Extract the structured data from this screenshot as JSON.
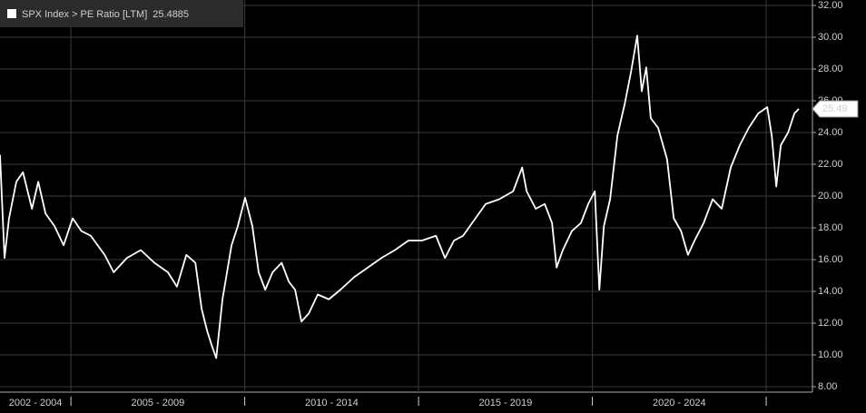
{
  "chart_data": {
    "type": "line",
    "legend": "SPX Index > PE Ratio [LTM]",
    "last_value": {
      "value": 25.4885,
      "label": "25.49"
    },
    "series": [
      {
        "name": "SPX Index > PE Ratio [LTM]",
        "color": "#ffffff",
        "x": [
          2002.96,
          2003.09,
          2003.22,
          2003.43,
          2003.62,
          2003.88,
          2004.06,
          2004.27,
          2004.53,
          2004.79,
          2005.05,
          2005.3,
          2005.57,
          2005.97,
          2006.23,
          2006.61,
          2007.01,
          2007.4,
          2007.79,
          2008.05,
          2008.32,
          2008.58,
          2008.76,
          2008.92,
          2009.05,
          2009.18,
          2009.36,
          2009.62,
          2009.8,
          2010.01,
          2010.22,
          2010.4,
          2010.59,
          2010.8,
          2011.06,
          2011.27,
          2011.45,
          2011.63,
          2011.84,
          2012.1,
          2012.42,
          2012.75,
          2013.15,
          2013.54,
          2013.93,
          2014.32,
          2014.71,
          2015.1,
          2015.5,
          2015.76,
          2016.02,
          2016.28,
          2016.54,
          2016.93,
          2017.32,
          2017.72,
          2017.98,
          2018.11,
          2018.37,
          2018.63,
          2018.84,
          2018.97,
          2019.15,
          2019.41,
          2019.67,
          2019.88,
          2020.07,
          2020.2,
          2020.33,
          2020.51,
          2020.72,
          2020.93,
          2021.11,
          2021.29,
          2021.42,
          2021.55,
          2021.68,
          2021.89,
          2022.15,
          2022.34,
          2022.55,
          2022.75,
          2022.94,
          2023.2,
          2023.46,
          2023.72,
          2023.98,
          2024.24,
          2024.5,
          2024.77,
          2025.03,
          2025.16,
          2025.29,
          2025.42,
          2025.63,
          2025.81,
          2025.94
        ],
        "values": [
          22.6,
          16.1,
          18.6,
          20.9,
          21.5,
          19.2,
          20.9,
          18.9,
          18.1,
          16.9,
          18.6,
          17.8,
          17.5,
          16.3,
          15.2,
          16.1,
          16.6,
          15.8,
          15.2,
          14.3,
          16.3,
          15.8,
          12.9,
          11.5,
          10.6,
          9.8,
          13.5,
          16.9,
          18.1,
          19.9,
          18.1,
          15.2,
          14.1,
          15.2,
          15.8,
          14.6,
          14.1,
          12.1,
          12.6,
          13.8,
          13.5,
          14.1,
          14.9,
          15.5,
          16.1,
          16.6,
          17.2,
          17.2,
          17.5,
          16.1,
          17.2,
          17.5,
          18.3,
          19.5,
          19.8,
          20.3,
          21.8,
          20.3,
          19.2,
          19.5,
          18.3,
          15.5,
          16.6,
          17.8,
          18.3,
          19.5,
          20.3,
          14.1,
          18.1,
          19.8,
          23.8,
          25.8,
          27.8,
          30.1,
          26.6,
          28.1,
          24.9,
          24.3,
          22.3,
          18.6,
          17.8,
          16.3,
          17.2,
          18.3,
          19.8,
          19.2,
          21.8,
          23.2,
          24.3,
          25.2,
          25.6,
          23.8,
          20.6,
          23.2,
          24.0,
          25.2,
          25.49
        ]
      }
    ],
    "xlim": [
      2002.96,
      2026.33
    ],
    "x_periods": [
      {
        "label": "2002 - 2004",
        "start": 2002,
        "end": 2005
      },
      {
        "label": "2005 - 2009",
        "start": 2005,
        "end": 2010
      },
      {
        "label": "2010 - 2014",
        "start": 2010,
        "end": 2015
      },
      {
        "label": "2015 - 2019",
        "start": 2015,
        "end": 2020
      },
      {
        "label": "2020 - 2024",
        "start": 2020,
        "end": 2025
      }
    ],
    "ylim": [
      8,
      32
    ],
    "yticks": [
      {
        "value": 8,
        "label": "8.00"
      },
      {
        "value": 10,
        "label": "10.00"
      },
      {
        "value": 12,
        "label": "12.00"
      },
      {
        "value": 14,
        "label": "14.00"
      },
      {
        "value": 16,
        "label": "16.00"
      },
      {
        "value": 18,
        "label": "18.00"
      },
      {
        "value": 20,
        "label": "20.00"
      },
      {
        "value": 22,
        "label": "22.00"
      },
      {
        "value": 24,
        "label": "24.00"
      },
      {
        "value": 26,
        "label": "26.00"
      },
      {
        "value": 28,
        "label": "28.00"
      },
      {
        "value": 30,
        "label": "30.00"
      },
      {
        "value": 32,
        "label": "32.00"
      }
    ],
    "grid": true
  }
}
